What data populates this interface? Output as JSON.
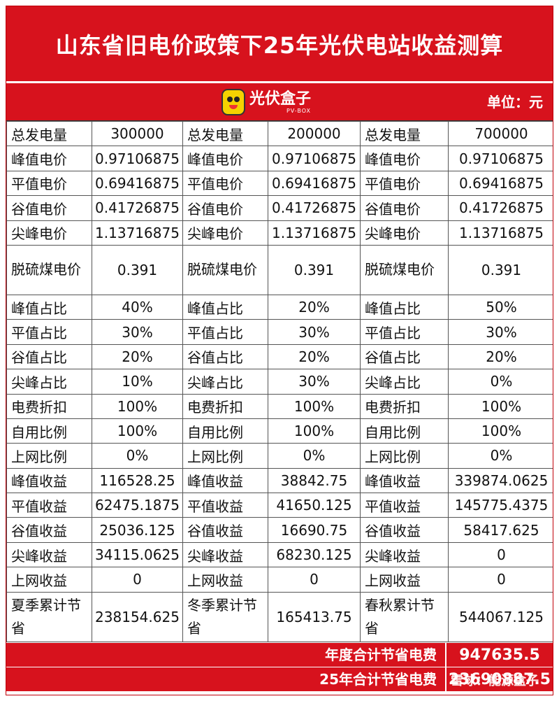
{
  "title": "山东省旧电价政策下25年光伏电站收益测算",
  "logo": {
    "name": "光伏盒子",
    "sub": "PV-BOX"
  },
  "unit": "单位：元",
  "rows": [
    {
      "c": [
        [
          "总发电量",
          "300000"
        ],
        [
          "总发电量",
          "200000"
        ],
        [
          "总发电量",
          "700000"
        ]
      ]
    },
    {
      "c": [
        [
          "峰值电价",
          "0.97106875"
        ],
        [
          "峰值电价",
          "0.97106875"
        ],
        [
          "峰值电价",
          "0.97106875"
        ]
      ]
    },
    {
      "c": [
        [
          "平值电价",
          "0.69416875"
        ],
        [
          "平值电价",
          "0.69416875"
        ],
        [
          "平值电价",
          "0.69416875"
        ]
      ]
    },
    {
      "c": [
        [
          "谷值电价",
          "0.41726875"
        ],
        [
          "谷值电价",
          "0.41726875"
        ],
        [
          "谷值电价",
          "0.41726875"
        ]
      ]
    },
    {
      "c": [
        [
          "尖峰电价",
          "1.13716875"
        ],
        [
          "尖峰电价",
          "1.13716875"
        ],
        [
          "尖峰电价",
          "1.13716875"
        ]
      ]
    },
    {
      "tall": true,
      "c": [
        [
          "脱硫煤电价",
          "0.391"
        ],
        [
          "脱硫煤电价",
          "0.391"
        ],
        [
          "脱硫煤电价",
          "0.391"
        ]
      ]
    },
    {
      "c": [
        [
          "峰值占比",
          "40%"
        ],
        [
          "峰值占比",
          "20%"
        ],
        [
          "峰值占比",
          "50%"
        ]
      ]
    },
    {
      "c": [
        [
          "平值占比",
          "30%"
        ],
        [
          "平值占比",
          "30%"
        ],
        [
          "平值占比",
          "30%"
        ]
      ]
    },
    {
      "c": [
        [
          "谷值占比",
          "20%"
        ],
        [
          "谷值占比",
          "20%"
        ],
        [
          "谷值占比",
          "20%"
        ]
      ]
    },
    {
      "c": [
        [
          "尖峰占比",
          "10%"
        ],
        [
          "尖峰占比",
          "30%"
        ],
        [
          "尖峰占比",
          "0%"
        ]
      ]
    },
    {
      "c": [
        [
          "电费折扣",
          "100%"
        ],
        [
          "电费折扣",
          "100%"
        ],
        [
          "电费折扣",
          "100%"
        ]
      ]
    },
    {
      "c": [
        [
          "自用比例",
          "100%"
        ],
        [
          "自用比例",
          "100%"
        ],
        [
          "自用比例",
          "100%"
        ]
      ]
    },
    {
      "c": [
        [
          "上网比例",
          "0%"
        ],
        [
          "上网比例",
          "0%"
        ],
        [
          "上网比例",
          "0%"
        ]
      ]
    },
    {
      "c": [
        [
          "峰值收益",
          "116528.25"
        ],
        [
          "峰值收益",
          "38842.75"
        ],
        [
          "峰值收益",
          "339874.0625"
        ]
      ]
    },
    {
      "c": [
        [
          "平值收益",
          "62475.1875"
        ],
        [
          "平值收益",
          "41650.125"
        ],
        [
          "平值收益",
          "145775.4375"
        ]
      ]
    },
    {
      "c": [
        [
          "谷值收益",
          "25036.125"
        ],
        [
          "谷值收益",
          "16690.75"
        ],
        [
          "谷值收益",
          "58417.625"
        ]
      ]
    },
    {
      "c": [
        [
          "尖峰收益",
          "34115.0625"
        ],
        [
          "尖峰收益",
          "68230.125"
        ],
        [
          "尖峰收益",
          "0"
        ]
      ]
    },
    {
      "c": [
        [
          "上网收益",
          "0"
        ],
        [
          "上网收益",
          "0"
        ],
        [
          "上网收益",
          "0"
        ]
      ]
    },
    {
      "tall": true,
      "c": [
        [
          "夏季累计节省",
          "238154.625"
        ],
        [
          "冬季累计节省",
          "165413.75"
        ],
        [
          "春秋累计节省",
          "544067.125"
        ]
      ]
    }
  ],
  "totals": [
    {
      "label": "年度合计节省电费",
      "value": "947635.5"
    },
    {
      "label": "25年合计节省电费",
      "value": "23690887.5"
    }
  ],
  "watermark": "雪球：能源盒子"
}
